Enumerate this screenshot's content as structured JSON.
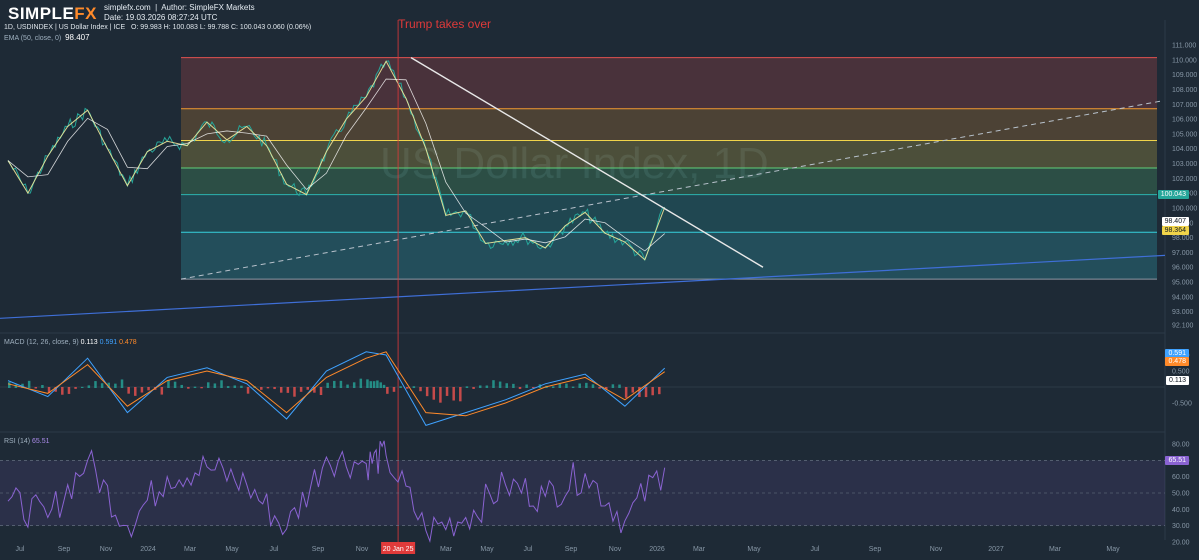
{
  "header": {
    "brand": "SIMPLE",
    "brand_fx": "FX",
    "site": "simplefx.com",
    "author": "Author: SimpleFX Markets",
    "date": "Date: 19.03.2026 08:27:24 UTC",
    "symbol_line": "1D, USDINDEX | US Dollar Index | ICE",
    "ohlc": "O: 99.983 H: 100.083 L: 99.788 C: 100.043 0.060 (0.06%)",
    "ema_label": "EMA (50, close, 0)",
    "ema_value": "98.407",
    "watermark": "US Dollar Index, 1D"
  },
  "annotation": {
    "text": "Trump takes over",
    "date_label": "20 Jan 25"
  },
  "x_axis": {
    "labels": [
      "Jul",
      "Sep",
      "Nov",
      "2024",
      "Mar",
      "May",
      "Jul",
      "Sep",
      "Nov",
      "20 Jan 25",
      "Mar",
      "May",
      "Jul",
      "Sep",
      "Nov",
      "2026",
      "Mar",
      "May",
      "Jul",
      "Sep",
      "Nov",
      "2027",
      "Mar",
      "May"
    ]
  },
  "price_axis": {
    "ticks": [
      "111.000",
      "110.000",
      "109.000",
      "108.000",
      "107.000",
      "106.000",
      "105.000",
      "104.000",
      "103.000",
      "102.000",
      "101.000",
      "100.000",
      "99.000",
      "98.000",
      "97.000",
      "96.000",
      "95.000",
      "94.000",
      "93.000",
      "92.100"
    ],
    "last_price": "100.043",
    "ema_tag": "98.407",
    "level_tag": "98.364"
  },
  "macd": {
    "label": "MACD (12, 26, close, 9)",
    "v1": "0.113",
    "v2": "0.591",
    "v3": "0.478",
    "tag_blue": "0.591",
    "tag_orange": "0.478",
    "tag_hist": "0.113",
    "ticks": [
      "1.000",
      "0.500",
      "-0.500"
    ]
  },
  "rsi": {
    "label": "RSI (14)",
    "value": "65.51",
    "tag": "65.51",
    "ticks": [
      "80.00",
      "70.00",
      "60.00",
      "50.00",
      "40.00",
      "30.00",
      "20.00"
    ]
  },
  "colors": {
    "background": "#1e2a36",
    "fib_red": "#e2524f",
    "fib_orange": "#f29b30",
    "fib_yellow": "#f0d44a",
    "fib_green": "#5ed07a",
    "fib_teal": "#2bb3b0",
    "fib_cyan": "#36d0de",
    "fib_gray": "#8f97a3",
    "trendline": "#e8e8e8",
    "support": "#3f6fd8",
    "ema": "#f0e89a",
    "sma": "#ffffff",
    "macd": "#3fa2ff",
    "signal": "#ff8a2a",
    "rsi": "#8a63d2",
    "annotation": "#e03a3a"
  },
  "chart_data": {
    "type": "line",
    "title": "US Dollar Index, 1D",
    "ylim": [
      92.1,
      111
    ],
    "series": [
      {
        "name": "USDINDEX",
        "x": [
          "2023-06",
          "2023-07",
          "2023-08",
          "2023-09",
          "2023-10",
          "2023-11",
          "2023-12",
          "2024-01",
          "2024-02",
          "2024-03",
          "2024-04",
          "2024-05",
          "2024-06",
          "2024-07",
          "2024-08",
          "2024-09",
          "2024-10",
          "2024-11",
          "2024-12",
          "2025-01",
          "2025-02",
          "2025-03",
          "2025-04",
          "2025-05",
          "2025-06",
          "2025-07",
          "2025-08",
          "2025-09",
          "2025-10",
          "2025-11",
          "2025-12",
          "2026-01",
          "2026-02",
          "2026-03"
        ],
        "values": [
          103.2,
          101.0,
          103.5,
          105.5,
          106.6,
          104.0,
          101.5,
          103.8,
          104.5,
          104.2,
          105.8,
          104.6,
          105.5,
          104.2,
          101.6,
          100.9,
          103.8,
          106.0,
          107.5,
          109.9,
          107.4,
          104.0,
          99.5,
          99.8,
          97.6,
          97.8,
          98.0,
          97.3,
          98.8,
          99.7,
          98.3,
          97.7,
          96.5,
          100.04
        ]
      }
    ],
    "fib_levels": [
      110.15,
      106.7,
      104.55,
      102.7,
      100.9,
      98.36,
      95.2
    ],
    "macd": {
      "x": [
        "2023-06",
        "2023-08",
        "2023-10",
        "2023-12",
        "2024-02",
        "2024-04",
        "2024-06",
        "2024-08",
        "2024-10",
        "2024-12",
        "2025-01",
        "2025-03",
        "2025-05",
        "2025-07",
        "2025-09",
        "2025-11",
        "2026-01",
        "2026-03"
      ],
      "macd": [
        0.2,
        -0.3,
        0.9,
        -0.8,
        0.3,
        0.6,
        0.1,
        -1.0,
        0.5,
        1.1,
        1.0,
        -1.2,
        -0.8,
        -0.4,
        0.1,
        0.4,
        -0.6,
        0.591
      ],
      "signal": [
        0.1,
        -0.2,
        0.7,
        -0.6,
        0.2,
        0.5,
        0.2,
        -0.8,
        0.3,
        0.9,
        1.1,
        -0.8,
        -0.9,
        -0.5,
        0.0,
        0.3,
        -0.4,
        0.478
      ]
    },
    "rsi": {
      "x": [
        "2023-06",
        "2023-08",
        "2023-10",
        "2023-12",
        "2024-02",
        "2024-04",
        "2024-06",
        "2024-08",
        "2024-10",
        "2024-12",
        "2025-01",
        "2025-03",
        "2025-05",
        "2025-07",
        "2025-09",
        "2025-11",
        "2026-01",
        "2026-03"
      ],
      "values": [
        45,
        35,
        70,
        30,
        60,
        66,
        55,
        28,
        72,
        68,
        73,
        27,
        35,
        55,
        48,
        62,
        33,
        65.51
      ]
    }
  }
}
